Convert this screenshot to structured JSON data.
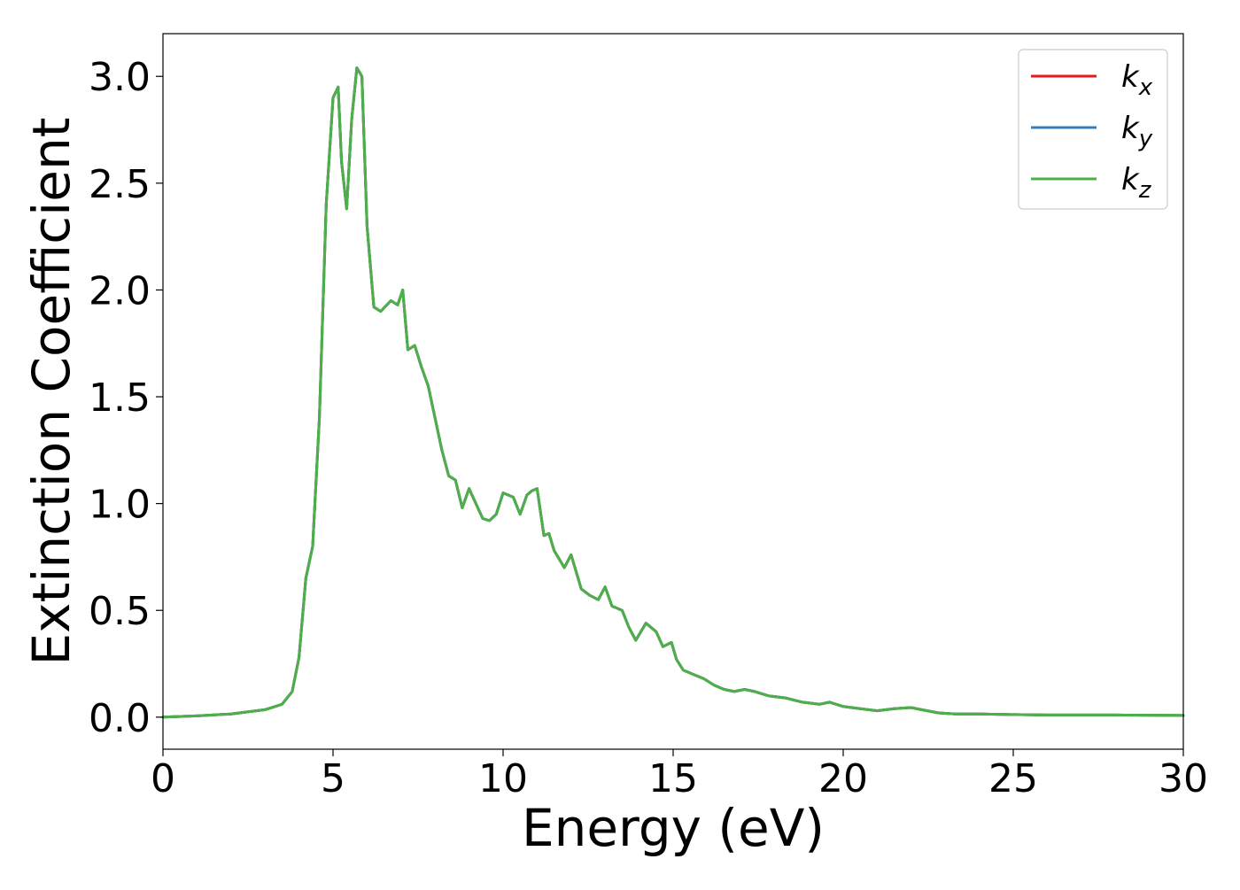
{
  "chart_data": {
    "type": "line",
    "title": "",
    "xlabel": "Energy (eV)",
    "ylabel": "Extinction Coefficient",
    "xlim": [
      0,
      30
    ],
    "ylim": [
      -0.15,
      3.2
    ],
    "xticks": [
      0,
      5,
      10,
      15,
      20,
      25,
      30
    ],
    "xtick_labels": [
      "0",
      "5",
      "10",
      "15",
      "20",
      "25",
      "30"
    ],
    "yticks": [
      0.0,
      0.5,
      1.0,
      1.5,
      2.0,
      2.5,
      3.0
    ],
    "ytick_labels": [
      "0.0",
      "0.5",
      "1.0",
      "1.5",
      "2.0",
      "2.5",
      "3.0"
    ],
    "grid": false,
    "legend_position": "top-right",
    "x": [
      0,
      1,
      2,
      3,
      3.5,
      3.8,
      4.0,
      4.2,
      4.4,
      4.6,
      4.8,
      5.0,
      5.15,
      5.25,
      5.4,
      5.55,
      5.7,
      5.85,
      6.0,
      6.2,
      6.4,
      6.7,
      6.9,
      7.05,
      7.2,
      7.4,
      7.6,
      7.8,
      8.0,
      8.2,
      8.4,
      8.6,
      8.8,
      9.0,
      9.2,
      9.4,
      9.6,
      9.8,
      10.0,
      10.3,
      10.5,
      10.7,
      10.85,
      11.0,
      11.2,
      11.35,
      11.5,
      11.65,
      11.8,
      12.0,
      12.3,
      12.55,
      12.8,
      13.0,
      13.2,
      13.5,
      13.7,
      13.9,
      14.2,
      14.5,
      14.7,
      14.95,
      15.1,
      15.3,
      15.6,
      15.9,
      16.2,
      16.5,
      16.8,
      17.1,
      17.4,
      17.8,
      18.3,
      18.8,
      19.3,
      19.6,
      20.0,
      20.5,
      21.0,
      21.5,
      22.0,
      22.3,
      22.8,
      23.3,
      24.0,
      24.9,
      26.0,
      28.0,
      30.0
    ],
    "series": [
      {
        "name": "k_x",
        "color": "#e41a1c",
        "values": [
          0.0,
          0.006,
          0.015,
          0.035,
          0.06,
          0.12,
          0.28,
          0.65,
          0.8,
          1.4,
          2.4,
          2.9,
          2.95,
          2.6,
          2.38,
          2.8,
          3.04,
          3.0,
          2.3,
          1.92,
          1.9,
          1.95,
          1.93,
          2.0,
          1.72,
          1.74,
          1.64,
          1.55,
          1.4,
          1.25,
          1.13,
          1.11,
          0.98,
          1.07,
          1.0,
          0.93,
          0.92,
          0.95,
          1.05,
          1.03,
          0.95,
          1.04,
          1.06,
          1.07,
          0.85,
          0.86,
          0.78,
          0.74,
          0.7,
          0.76,
          0.6,
          0.57,
          0.55,
          0.61,
          0.52,
          0.5,
          0.42,
          0.36,
          0.44,
          0.4,
          0.33,
          0.35,
          0.27,
          0.22,
          0.2,
          0.18,
          0.15,
          0.13,
          0.12,
          0.13,
          0.12,
          0.1,
          0.09,
          0.07,
          0.06,
          0.07,
          0.05,
          0.04,
          0.03,
          0.04,
          0.045,
          0.035,
          0.02,
          0.015,
          0.015,
          0.012,
          0.01,
          0.01,
          0.008
        ]
      },
      {
        "name": "k_y",
        "color": "#377eb8",
        "values": [
          0.0,
          0.006,
          0.015,
          0.035,
          0.06,
          0.12,
          0.28,
          0.65,
          0.8,
          1.4,
          2.4,
          2.9,
          2.95,
          2.6,
          2.38,
          2.8,
          3.04,
          3.0,
          2.3,
          1.92,
          1.9,
          1.95,
          1.93,
          2.0,
          1.72,
          1.74,
          1.64,
          1.55,
          1.4,
          1.25,
          1.13,
          1.11,
          0.98,
          1.07,
          1.0,
          0.93,
          0.92,
          0.95,
          1.05,
          1.03,
          0.95,
          1.04,
          1.06,
          1.07,
          0.85,
          0.86,
          0.78,
          0.74,
          0.7,
          0.76,
          0.6,
          0.57,
          0.55,
          0.61,
          0.52,
          0.5,
          0.42,
          0.36,
          0.44,
          0.4,
          0.33,
          0.35,
          0.27,
          0.22,
          0.2,
          0.18,
          0.15,
          0.13,
          0.12,
          0.13,
          0.12,
          0.1,
          0.09,
          0.07,
          0.06,
          0.07,
          0.05,
          0.04,
          0.03,
          0.04,
          0.045,
          0.035,
          0.02,
          0.015,
          0.015,
          0.012,
          0.01,
          0.01,
          0.008
        ]
      },
      {
        "name": "k_z",
        "color": "#4daf4a",
        "values": [
          0.0,
          0.006,
          0.015,
          0.035,
          0.06,
          0.12,
          0.28,
          0.65,
          0.8,
          1.4,
          2.4,
          2.9,
          2.95,
          2.6,
          2.38,
          2.8,
          3.04,
          3.0,
          2.3,
          1.92,
          1.9,
          1.95,
          1.93,
          2.0,
          1.72,
          1.74,
          1.64,
          1.55,
          1.4,
          1.25,
          1.13,
          1.11,
          0.98,
          1.07,
          1.0,
          0.93,
          0.92,
          0.95,
          1.05,
          1.03,
          0.95,
          1.04,
          1.06,
          1.07,
          0.85,
          0.86,
          0.78,
          0.74,
          0.7,
          0.76,
          0.6,
          0.57,
          0.55,
          0.61,
          0.52,
          0.5,
          0.42,
          0.36,
          0.44,
          0.4,
          0.33,
          0.35,
          0.27,
          0.22,
          0.2,
          0.18,
          0.15,
          0.13,
          0.12,
          0.13,
          0.12,
          0.1,
          0.09,
          0.07,
          0.06,
          0.07,
          0.05,
          0.04,
          0.03,
          0.04,
          0.045,
          0.035,
          0.02,
          0.015,
          0.015,
          0.012,
          0.01,
          0.01,
          0.008
        ]
      }
    ],
    "legend": [
      {
        "base": "k",
        "sub": "x",
        "color": "#e41a1c"
      },
      {
        "base": "k",
        "sub": "y",
        "color": "#377eb8"
      },
      {
        "base": "k",
        "sub": "z",
        "color": "#4daf4a"
      }
    ]
  }
}
